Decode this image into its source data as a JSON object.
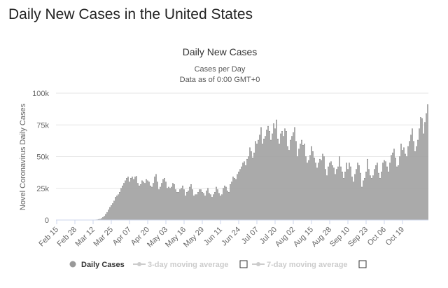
{
  "page": {
    "heading": "Daily New Cases in the United States"
  },
  "chart_data": {
    "type": "bar",
    "title": "Daily New Cases",
    "subtitle_line1": "Cases per Day",
    "subtitle_line2": "Data as of 0:00 GMT+0",
    "ylabel": "Novel Coronavirus Daily Cases",
    "xlabel": "",
    "ylim": [
      0,
      100000
    ],
    "y_ticks": [
      0,
      25000,
      50000,
      75000,
      100000
    ],
    "y_tick_labels": [
      "0",
      "25k",
      "50k",
      "75k",
      "100k"
    ],
    "x_tick_labels": [
      "Feb 15",
      "Feb 28",
      "Mar 12",
      "Mar 25",
      "Apr 07",
      "Apr 20",
      "May 03",
      "May 16",
      "May 29",
      "Jun 11",
      "Jun 24",
      "Jul 07",
      "Jul 20",
      "Aug 02",
      "Aug 15",
      "Aug 28",
      "Sep 10",
      "Sep 23",
      "Oct 06",
      "Oct 19"
    ],
    "x_tick_step_days": 13,
    "grid": true,
    "bar_color": "#c8c8c8",
    "bar_stroke": "#666666",
    "series": [
      {
        "name": "Daily Cases",
        "values": [
          0,
          0,
          0,
          0,
          0,
          0,
          0,
          0,
          0,
          0,
          0,
          0,
          0,
          0,
          0,
          0,
          0,
          0,
          0,
          0,
          0,
          0,
          0,
          0,
          0,
          0,
          0,
          100,
          200,
          300,
          500,
          700,
          1200,
          2000,
          3000,
          4500,
          6000,
          8000,
          10000,
          11500,
          13000,
          15000,
          18000,
          19000,
          20000,
          22000,
          25000,
          27000,
          29000,
          31000,
          33000,
          34000,
          30000,
          33000,
          34000,
          32000,
          34000,
          34500,
          29000,
          27000,
          28000,
          31000,
          30000,
          29000,
          32000,
          31000,
          30000,
          27000,
          26000,
          29000,
          34000,
          36000,
          30000,
          24000,
          26000,
          29000,
          32000,
          33000,
          30000,
          25000,
          26000,
          25000,
          26000,
          29000,
          28000,
          24000,
          22000,
          22000,
          24000,
          25000,
          27000,
          24000,
          19000,
          22000,
          23000,
          26000,
          28000,
          24000,
          19000,
          20000,
          20000,
          22000,
          24000,
          24000,
          22000,
          21000,
          19000,
          23000,
          25000,
          21000,
          20000,
          18000,
          20000,
          22000,
          26000,
          24000,
          21000,
          19000,
          20000,
          25000,
          27000,
          26000,
          23000,
          22000,
          28000,
          30000,
          34000,
          33000,
          32000,
          36000,
          38000,
          40000,
          42000,
          45000,
          46000,
          43000,
          48000,
          50000,
          57000,
          54000,
          49000,
          53000,
          62000,
          60000,
          63000,
          67000,
          73000,
          60000,
          64000,
          66000,
          71000,
          74000,
          70000,
          63000,
          68000,
          76000,
          72000,
          79000,
          64000,
          60000,
          68000,
          70000,
          66000,
          72000,
          70000,
          58000,
          55000,
          63000,
          66000,
          69000,
          73000,
          62000,
          50000,
          56000,
          60000,
          63000,
          59000,
          60000,
          50000,
          45000,
          47000,
          51000,
          58000,
          54000,
          49000,
          45000,
          41000,
          45000,
          48000,
          47000,
          52000,
          50000,
          40000,
          35000,
          42000,
          45000,
          46000,
          43000,
          41000,
          36000,
          40000,
          42000,
          50000,
          42000,
          38000,
          33000,
          38000,
          45000,
          40000,
          45000,
          42000,
          34000,
          30000,
          36000,
          40000,
          45000,
          43000,
          37000,
          26000,
          31000,
          33000,
          38000,
          48000,
          40000,
          35000,
          33000,
          35000,
          40000,
          43000,
          45000,
          37000,
          33000,
          38000,
          45000,
          47000,
          46000,
          42000,
          38000,
          45000,
          51000,
          53000,
          56000,
          49000,
          42000,
          43000,
          50000,
          60000,
          55000,
          57000,
          52000,
          50000,
          58000,
          62000,
          67000,
          72000,
          62000,
          54000,
          58000,
          63000,
          72000,
          81000,
          80000,
          68000,
          77000,
          84000,
          91000
        ]
      }
    ],
    "legend": {
      "position": "bottom",
      "items": [
        {
          "label": "Daily Cases",
          "active": true
        },
        {
          "label": "3-day moving average",
          "active": false
        },
        {
          "label": "7-day moving average",
          "active": false
        }
      ]
    }
  }
}
